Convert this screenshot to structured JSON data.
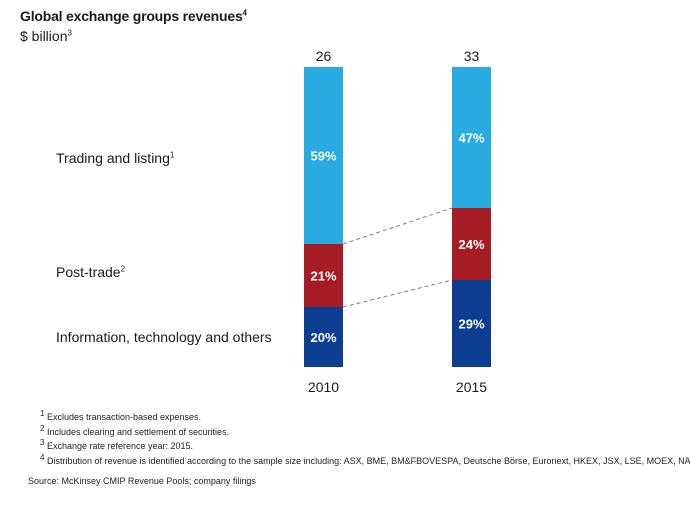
{
  "title": "Global exchange groups revenues",
  "title_note": "4",
  "unit": "$ billion",
  "unit_note": "3",
  "colors": {
    "trading": "#29abe2",
    "post_trade": "#a51c24",
    "information": "#0b3e91",
    "connector": "#7f7f7f"
  },
  "labels": [
    {
      "text": "Trading and listing",
      "note": "1"
    },
    {
      "text": "Post-trade",
      "note": "2"
    },
    {
      "text": "Information, technology and others",
      "note": ""
    }
  ],
  "chart_data": {
    "type": "bar",
    "stacked": true,
    "normalized": true,
    "categories": [
      "2010",
      "2015"
    ],
    "totals": [
      "26",
      "33"
    ],
    "series": [
      {
        "name": "Information, technology and others",
        "color": "#0b3e91",
        "values": [
          20,
          29
        ],
        "labels": [
          "20%",
          "29%"
        ]
      },
      {
        "name": "Post-trade",
        "color": "#a51c24",
        "values": [
          21,
          24
        ],
        "labels": [
          "21%",
          "24%"
        ]
      },
      {
        "name": "Trading and listing",
        "color": "#29abe2",
        "values": [
          59,
          47
        ],
        "labels": [
          "59%",
          "47%"
        ]
      }
    ],
    "connectors": "dashed lines between segment boundaries",
    "grid": false,
    "legend": "left"
  },
  "footnotes": [
    {
      "num": "1",
      "text": "Excludes transaction-based expenses."
    },
    {
      "num": "2",
      "text": "Includes clearing and settlement of securities."
    },
    {
      "num": "3",
      "text": "Exchange rate reference year: 2015."
    },
    {
      "num": "4",
      "text": "Distribution of revenue is identified according to the sample size including: ASX, BME, BM&FBOVESPA, Deutsche Börse, Euronext, HKEX, JSX, LSE, MOEX, NASDAQ."
    }
  ],
  "source": "Source: McKinsey CMIP Revenue Pools; company filings"
}
